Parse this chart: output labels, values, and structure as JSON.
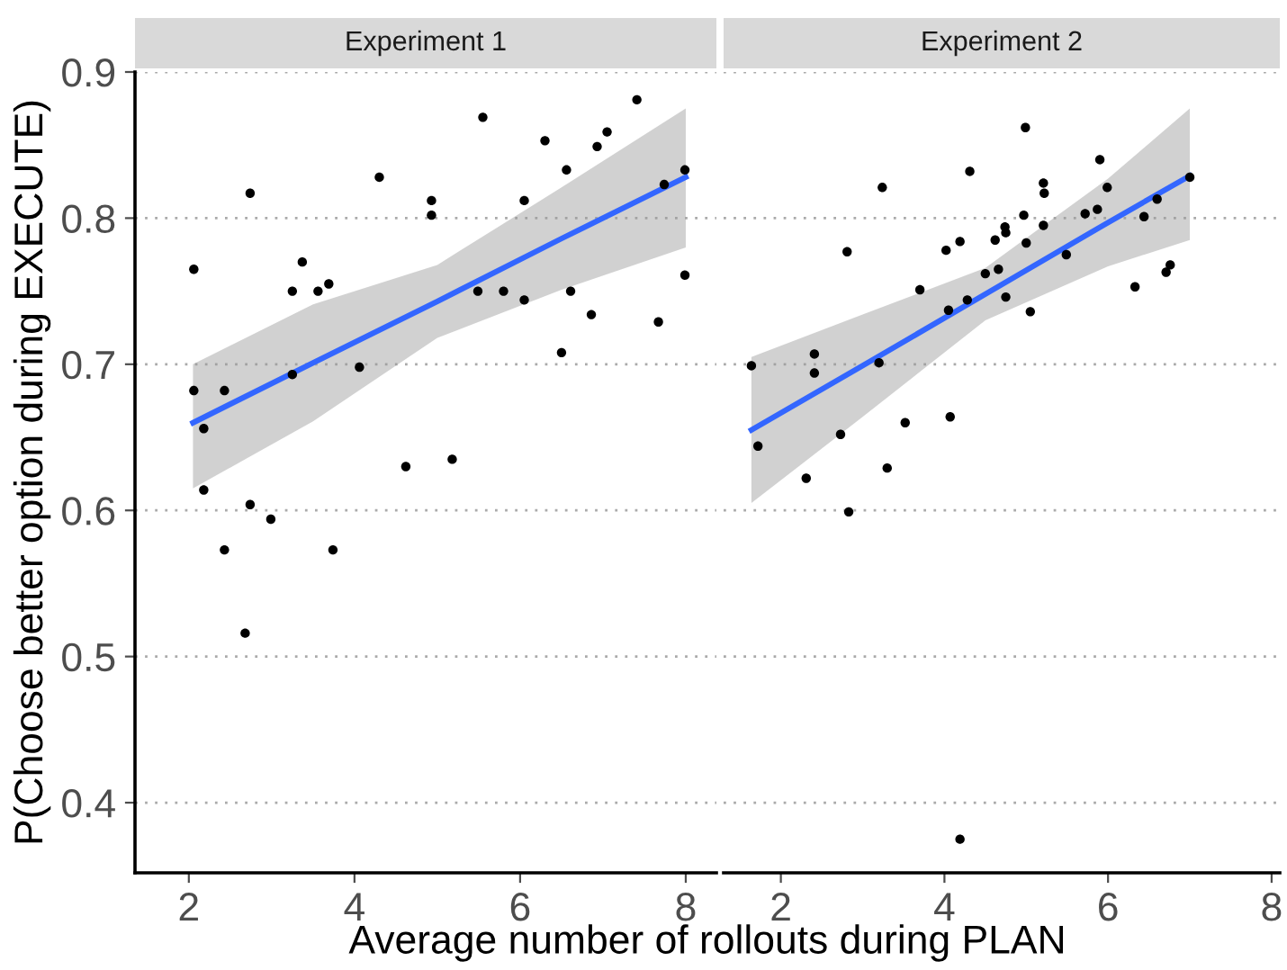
{
  "chart_data": [
    {
      "type": "scatter",
      "title": "Experiment 1",
      "xlabel": "Average number of rollouts during PLAN",
      "ylabel": "P(Choose better option during EXECUTE)",
      "xlim": [
        1.35,
        8.37
      ],
      "ylim": [
        0.352,
        0.9
      ],
      "xticks": [
        2,
        4,
        6,
        8
      ],
      "yticks": [
        0.4,
        0.5,
        0.6,
        0.7,
        0.8,
        0.9
      ],
      "grid": "y",
      "series": [
        {
          "marker": "circle",
          "color": "#000000",
          "x": [
            2.06,
            2.06,
            2.18,
            2.18,
            2.43,
            2.43,
            2.68,
            2.74,
            2.74,
            2.99,
            3.25,
            3.25,
            3.37,
            3.56,
            3.69,
            3.74,
            4.06,
            4.3,
            4.62,
            4.93,
            4.93,
            5.18,
            5.49,
            5.55,
            5.8,
            6.05,
            6.05,
            6.3,
            6.5,
            6.56,
            6.61,
            6.86,
            6.93,
            7.05,
            7.41,
            7.67,
            7.74,
            7.99,
            7.99
          ],
          "values": [
            0.765,
            0.682,
            0.656,
            0.614,
            0.682,
            0.573,
            0.516,
            0.817,
            0.604,
            0.594,
            0.75,
            0.693,
            0.77,
            0.75,
            0.755,
            0.573,
            0.698,
            0.828,
            0.63,
            0.812,
            0.802,
            0.635,
            0.75,
            0.869,
            0.75,
            0.744,
            0.812,
            0.853,
            0.708,
            0.833,
            0.75,
            0.734,
            0.849,
            0.859,
            0.881,
            0.729,
            0.823,
            0.833,
            0.761
          ]
        },
        {
          "type": "line",
          "marker": "none",
          "color": "#3366ff",
          "x": [
            2.05,
            3.5,
            5.0,
            6.5,
            8.0
          ],
          "values": [
            0.66,
            0.701,
            0.743,
            0.786,
            0.828
          ],
          "lower": [
            0.615,
            0.661,
            0.718,
            0.751,
            0.78
          ],
          "upper": [
            0.7,
            0.741,
            0.768,
            0.821,
            0.875
          ]
        }
      ]
    },
    {
      "type": "scatter",
      "title": "Experiment 2",
      "xlim": [
        1.3,
        8.1
      ],
      "ylim": [
        0.352,
        0.9
      ],
      "xticks": [
        2,
        4,
        6,
        8
      ],
      "yticks": [
        0.4,
        0.5,
        0.6,
        0.7,
        0.8,
        0.9
      ],
      "grid": "y",
      "tick_labels": "x",
      "series": [
        {
          "marker": "circle",
          "color": "#000000",
          "x": [
            1.64,
            1.72,
            2.31,
            2.41,
            2.41,
            2.73,
            2.81,
            2.83,
            3.2,
            3.24,
            3.3,
            3.52,
            3.7,
            4.02,
            4.05,
            4.07,
            4.19,
            4.19,
            4.28,
            4.31,
            4.5,
            4.62,
            4.66,
            4.74,
            4.75,
            4.75,
            4.97,
            4.99,
            5.0,
            5.05,
            5.21,
            5.21,
            5.22,
            5.49,
            5.72,
            5.87,
            5.9,
            5.99,
            6.33,
            6.44,
            6.6,
            6.71,
            6.76,
            7.0
          ],
          "values": [
            0.699,
            0.644,
            0.622,
            0.707,
            0.694,
            0.652,
            0.777,
            0.599,
            0.701,
            0.821,
            0.629,
            0.66,
            0.751,
            0.778,
            0.737,
            0.664,
            0.784,
            0.375,
            0.744,
            0.832,
            0.762,
            0.785,
            0.765,
            0.794,
            0.79,
            0.746,
            0.802,
            0.862,
            0.783,
            0.736,
            0.824,
            0.795,
            0.817,
            0.775,
            0.803,
            0.806,
            0.84,
            0.821,
            0.753,
            0.801,
            0.813,
            0.763,
            0.768,
            0.828
          ]
        },
        {
          "type": "line",
          "marker": "none",
          "color": "#3366ff",
          "x": [
            1.64,
            3.0,
            4.5,
            6.0,
            7.0
          ],
          "values": [
            0.655,
            0.699,
            0.748,
            0.797,
            0.829
          ],
          "lower": [
            0.605,
            0.664,
            0.73,
            0.767,
            0.785
          ],
          "upper": [
            0.705,
            0.734,
            0.766,
            0.827,
            0.875
          ]
        }
      ]
    }
  ]
}
